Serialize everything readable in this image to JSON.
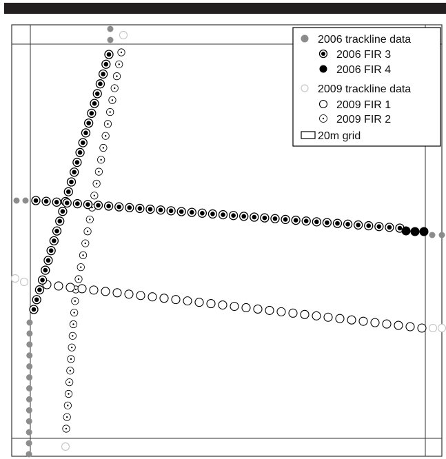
{
  "chart_data": {
    "type": "scatter",
    "title": "",
    "xlabel": "",
    "ylabel": "",
    "grid": true,
    "legend_position": "top-right",
    "colors": {
      "gray": "#8c8c8c",
      "light_gray": "#c8c8c8",
      "black": "#000000",
      "frame": "#333333"
    },
    "legend": [
      {
        "label": "2006 trackline data",
        "style": "gray-dot"
      },
      {
        "label": "2006 FIR 3",
        "style": "ringed-dot"
      },
      {
        "label": "2006 FIR 4",
        "style": "black-dot"
      },
      {
        "label": "2009 trackline data",
        "style": "light-ring"
      },
      {
        "label": "2009 FIR 1",
        "style": "ring"
      },
      {
        "label": "2009 FIR 2",
        "style": "dotted-ring"
      },
      {
        "label": "20m grid",
        "style": "grid-box"
      }
    ]
  }
}
